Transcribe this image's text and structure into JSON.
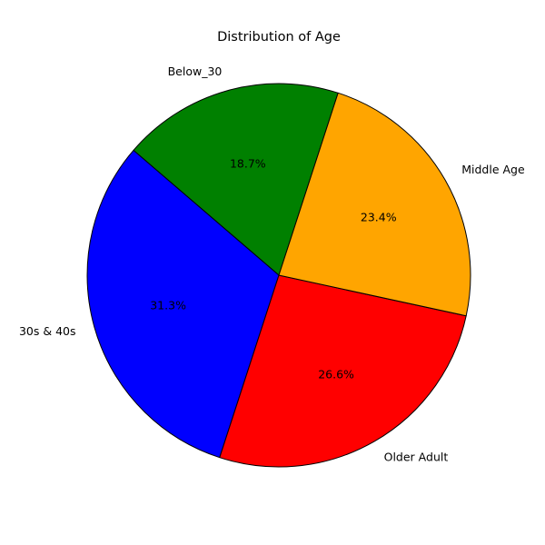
{
  "chart_data": {
    "type": "pie",
    "title": "Distribution of Age",
    "categories": [
      "Below_30",
      "30s & 40s",
      "Older Adult",
      "Middle Age"
    ],
    "values": [
      18.7,
      31.3,
      26.6,
      23.4
    ],
    "value_labels": [
      "18.7%",
      "31.3%",
      "26.6%",
      "23.4%"
    ],
    "colors": [
      "#008000",
      "#0000ff",
      "#ff0000",
      "#ffa500"
    ],
    "start_angle_deg": 72,
    "direction": "counterclockwise",
    "edge_color": "#000000",
    "legend": "none"
  }
}
